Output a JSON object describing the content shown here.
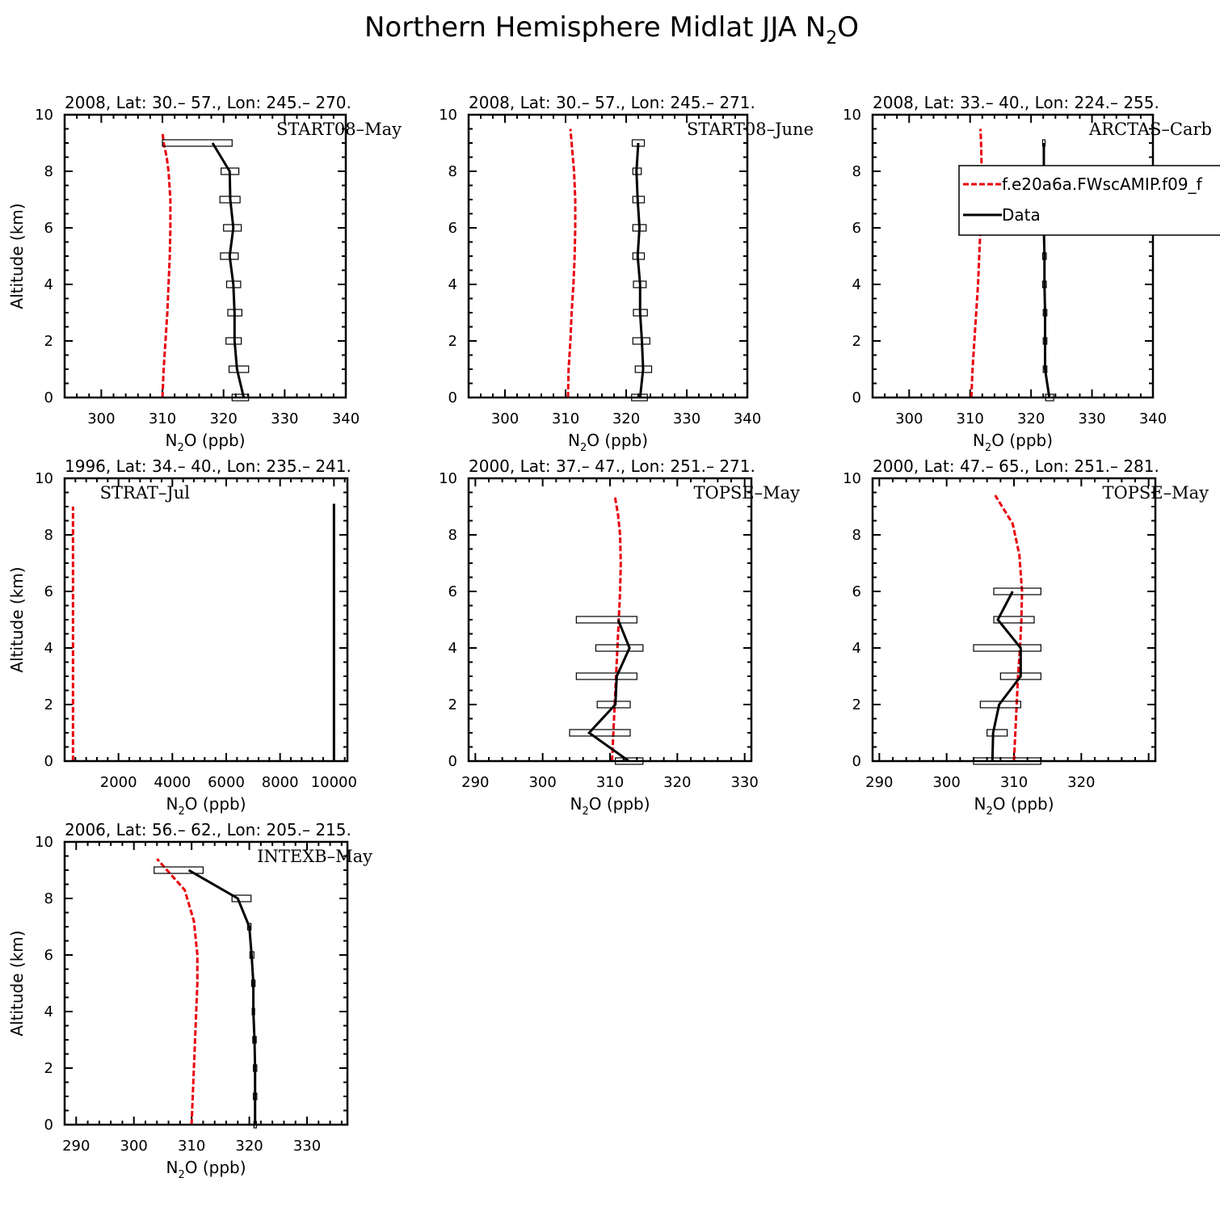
{
  "figure": {
    "title": "Northern Hemisphere Midlat JJA N",
    "title_sub": "2",
    "title_tail": "O"
  },
  "legend": {
    "model": "f.e20a6a.FWscAMIP.f09_f",
    "data": "Data"
  },
  "colors": {
    "model": "#e8000b",
    "data": "#000000"
  },
  "chart_data": [
    {
      "type": "line",
      "header": "2008, Lat:  30.– 57., Lon: 245.– 270.",
      "campaign": "START08–May",
      "xlabel": "N2O (ppb)",
      "ylabel": "Altitude (km)",
      "xlim": [
        294,
        340
      ],
      "ylim": [
        0,
        10
      ],
      "xticks": [
        300,
        310,
        320,
        330,
        340
      ],
      "yticks": [
        0,
        2,
        4,
        6,
        8,
        10
      ],
      "model": {
        "alt": [
          0,
          1,
          2,
          3,
          4,
          5,
          6,
          7,
          8,
          8.5,
          9,
          9.4
        ],
        "n2o": [
          310.0,
          310.2,
          310.5,
          310.8,
          311.0,
          311.2,
          311.3,
          311.3,
          311.0,
          310.7,
          310.2,
          310.0
        ]
      },
      "data": {
        "alt": [
          0,
          1,
          2,
          3,
          4,
          5,
          6,
          7,
          8,
          9
        ],
        "n2o": [
          323.3,
          322.2,
          321.8,
          321.8,
          321.6,
          321.0,
          321.6,
          321.1,
          321.0,
          318.2
        ],
        "min": [
          321.4,
          320.9,
          320.4,
          320.7,
          320.5,
          319.5,
          320.0,
          319.4,
          319.6,
          310.0
        ],
        "max": [
          324.1,
          324.1,
          322.9,
          323.0,
          322.8,
          322.4,
          322.9,
          322.7,
          322.5,
          321.4
        ]
      },
      "legend": false
    },
    {
      "type": "line",
      "header": "2008, Lat:  30.– 57., Lon: 245.– 271.",
      "campaign": "START08–June",
      "xlabel": "N2O (ppb)",
      "ylabel": "",
      "xlim": [
        294,
        340
      ],
      "ylim": [
        0,
        10
      ],
      "xticks": [
        300,
        310,
        320,
        330,
        340
      ],
      "yticks": [
        0,
        2,
        4,
        6,
        8,
        10
      ],
      "model": {
        "alt": [
          0,
          1,
          2,
          3,
          4,
          5,
          6,
          7,
          8,
          8.5,
          9,
          9.5
        ],
        "n2o": [
          310.4,
          310.5,
          310.8,
          311.0,
          311.3,
          311.5,
          311.6,
          311.6,
          311.4,
          311.2,
          311.0,
          310.8
        ]
      },
      "data": {
        "alt": [
          0,
          1,
          2,
          3,
          4,
          5,
          6,
          7,
          8,
          9
        ],
        "n2o": [
          322.3,
          322.8,
          322.6,
          322.3,
          322.3,
          321.9,
          322.2,
          321.9,
          321.7,
          322.0
        ],
        "min": [
          320.9,
          321.5,
          321.1,
          321.2,
          321.2,
          321.1,
          321.1,
          321.1,
          321.1,
          321.0
        ],
        "max": [
          323.5,
          324.2,
          323.9,
          323.5,
          323.3,
          323.0,
          323.3,
          323.0,
          322.5,
          323.0
        ]
      },
      "legend": false
    },
    {
      "type": "line",
      "header": "2008, Lat:  33.– 40., Lon: 224.– 255.",
      "campaign": "ARCTAS–Carb",
      "xlabel": "N2O (ppb)",
      "ylabel": "",
      "xlim": [
        294,
        340
      ],
      "ylim": [
        0,
        10
      ],
      "xticks": [
        300,
        310,
        320,
        330,
        340
      ],
      "yticks": [
        0,
        2,
        4,
        6,
        8,
        10
      ],
      "model": {
        "alt": [
          0,
          1,
          2,
          3,
          4,
          5,
          6,
          7,
          8,
          9,
          9.5
        ],
        "n2o": [
          310.2,
          310.4,
          310.7,
          311.0,
          311.3,
          311.5,
          311.7,
          311.8,
          311.9,
          311.8,
          311.7
        ]
      },
      "data": {
        "alt": [
          0,
          1,
          2,
          3,
          4,
          5,
          6,
          7,
          8,
          9
        ],
        "n2o": [
          323.0,
          322.3,
          322.3,
          322.3,
          322.2,
          322.2,
          322.1,
          322.1,
          322.1,
          322.1
        ],
        "min": [
          322.4,
          322.0,
          322.0,
          322.0,
          321.9,
          321.9,
          321.8,
          321.8,
          321.8,
          321.9
        ],
        "max": [
          323.7,
          322.6,
          322.6,
          322.6,
          322.5,
          322.5,
          322.4,
          322.4,
          322.4,
          322.3
        ]
      },
      "legend": true
    },
    {
      "type": "line",
      "header": "1996, Lat: 34.– 40., Lon: 235.– 241.",
      "campaign": "STRAT–Jul",
      "xlabel": "N2O (ppb)",
      "ylabel": "Altitude (km)",
      "xlim": [
        0,
        10500
      ],
      "ylim": [
        0,
        10
      ],
      "xticks": [
        2000,
        4000,
        6000,
        8000,
        10000
      ],
      "yticks": [
        0,
        2,
        4,
        6,
        8,
        10
      ],
      "model": {
        "alt": [
          0,
          9
        ],
        "n2o": [
          310,
          310
        ]
      },
      "data": {
        "alt": [
          0,
          9.1
        ],
        "n2o": [
          10000,
          10000
        ],
        "min": [],
        "max": []
      },
      "legend": false
    },
    {
      "type": "line",
      "header": "2000, Lat: 37.– 47., Lon: 251.– 271.",
      "campaign": "TOPSE–May",
      "xlabel": "N2O (ppb)",
      "ylabel": "",
      "xlim": [
        289,
        331
      ],
      "ylim": [
        0,
        10
      ],
      "xticks": [
        290,
        300,
        310,
        320,
        330
      ],
      "yticks": [
        0,
        2,
        4,
        6,
        8,
        10
      ],
      "model": {
        "alt": [
          0,
          1,
          2,
          3,
          4,
          5,
          6,
          7,
          8,
          8.7,
          9.4
        ],
        "n2o": [
          310.3,
          310.5,
          310.7,
          310.9,
          311.1,
          311.3,
          311.5,
          311.6,
          311.5,
          311.2,
          310.7
        ]
      },
      "data": {
        "alt": [
          0,
          1,
          2,
          3,
          4,
          5
        ],
        "n2o": [
          312.8,
          306.9,
          310.8,
          311.0,
          312.9,
          311.2
        ],
        "min": [
          310.8,
          304.0,
          308.1,
          305.0,
          307.9,
          305.0
        ],
        "max": [
          314.9,
          313.0,
          313.0,
          314.0,
          314.9,
          314.0
        ]
      },
      "legend": false
    },
    {
      "type": "line",
      "header": "2000, Lat: 47.– 65., Lon: 251.– 281.",
      "campaign": "TOPSE–May",
      "xlabel": "N2O (ppb)",
      "ylabel": "",
      "xlim": [
        289,
        331
      ],
      "ylim": [
        0,
        10
      ],
      "xticks": [
        290,
        300,
        310,
        320
      ],
      "yticks": [
        0,
        2,
        4,
        6,
        8,
        10
      ],
      "model": {
        "alt": [
          0,
          1,
          2,
          3,
          4,
          5,
          6,
          7.3,
          8.4,
          9.4
        ],
        "n2o": [
          310.0,
          310.2,
          310.4,
          310.6,
          310.9,
          311.1,
          311.2,
          310.8,
          309.8,
          307.2
        ]
      },
      "data": {
        "alt": [
          0,
          1,
          2,
          3,
          4,
          5,
          6
        ],
        "n2o": [
          306.8,
          306.9,
          307.8,
          311.0,
          311.0,
          307.6,
          309.8
        ],
        "min": [
          304.0,
          306.0,
          305.0,
          308.0,
          304.0,
          307.0,
          307.0
        ],
        "max": [
          314.0,
          309.0,
          311.0,
          314.0,
          314.0,
          313.0,
          314.0
        ]
      },
      "legend": false
    },
    {
      "type": "line",
      "header": "2006, Lat: 56.– 62., Lon: 205.– 215.",
      "campaign": "INTEXB–May",
      "xlabel": "N2O (ppb)",
      "ylabel": "Altitude (km)",
      "xlim": [
        288,
        337
      ],
      "ylim": [
        0,
        10
      ],
      "xticks": [
        290,
        300,
        310,
        320,
        330
      ],
      "yticks": [
        0,
        2,
        4,
        6,
        8,
        10
      ],
      "model": {
        "alt": [
          0,
          1,
          2,
          3,
          4,
          5,
          6,
          7.2,
          8.3,
          9.4
        ],
        "n2o": [
          310.0,
          310.2,
          310.4,
          310.6,
          310.8,
          311.0,
          311.0,
          310.4,
          308.8,
          304.0
        ]
      },
      "data": {
        "alt": [
          0,
          1,
          2,
          3,
          4,
          5,
          6,
          7,
          8,
          9
        ],
        "n2o": [
          321.0,
          321.0,
          321.0,
          320.9,
          320.7,
          320.7,
          320.4,
          320.0,
          318.0,
          309.5
        ],
        "min": [
          320.8,
          320.7,
          320.7,
          320.6,
          320.5,
          320.4,
          320.1,
          319.7,
          317.0,
          303.5
        ],
        "max": [
          321.2,
          321.3,
          321.3,
          321.2,
          320.9,
          321.0,
          320.8,
          320.3,
          320.3,
          312.0
        ]
      },
      "legend": false
    }
  ]
}
